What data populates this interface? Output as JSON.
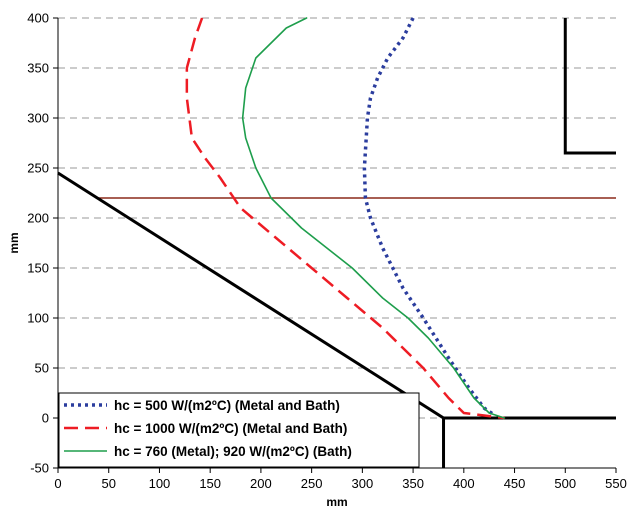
{
  "chart_data": {
    "type": "line",
    "title": "",
    "xlabel": "mm",
    "ylabel": "mm",
    "xlim": [
      0,
      550
    ],
    "ylim": [
      -50,
      400
    ],
    "xticks": [
      "0",
      "50",
      "100",
      "150",
      "200",
      "250",
      "300",
      "350",
      "400",
      "450",
      "500",
      "550"
    ],
    "yticks": [
      "-50",
      "0",
      "50",
      "100",
      "150",
      "200",
      "250",
      "300",
      "350",
      "400"
    ],
    "grid": "horizontal dashed",
    "legend_position": "bottom-left",
    "colors": {
      "s500": "#2b3d9e",
      "s1000": "#ee1c24",
      "s760": "#1e9e4c",
      "geometry": "#000000",
      "hline": "#8b2a1a",
      "grid": "#999999"
    },
    "series": [
      {
        "name": "hc = 500 W/(m2ºC) (Metal and Bath)",
        "style": "dotted",
        "x": [
          350,
          340,
          325,
          315,
          308,
          305,
          302,
          303,
          308,
          320,
          340,
          360,
          385,
          405,
          420,
          430
        ],
        "y": [
          400,
          380,
          360,
          340,
          320,
          300,
          250,
          220,
          200,
          170,
          130,
          100,
          60,
          30,
          10,
          3
        ]
      },
      {
        "name": "hc = 1000 W/(m2ºC) (Metal and Bath)",
        "style": "dashed",
        "x": [
          142,
          135,
          127,
          127,
          132,
          145,
          160,
          180,
          215,
          250,
          285,
          320,
          360,
          385,
          400,
          440
        ],
        "y": [
          400,
          380,
          350,
          320,
          280,
          260,
          240,
          210,
          180,
          150,
          120,
          90,
          50,
          20,
          5,
          0
        ]
      },
      {
        "name": "hc = 760 (Metal); 920 W/(m2ºC) (Bath)",
        "style": "solid",
        "x": [
          245,
          225,
          195,
          185,
          182,
          185,
          195,
          210,
          240,
          265,
          290,
          320,
          345,
          365,
          390,
          410,
          425,
          440
        ],
        "y": [
          400,
          390,
          360,
          330,
          300,
          280,
          250,
          220,
          190,
          170,
          150,
          120,
          100,
          80,
          50,
          20,
          5,
          0
        ]
      }
    ],
    "geometry": {
      "diagonal": [
        [
          0,
          245
        ],
        [
          380,
          0
        ]
      ],
      "floor": [
        [
          380,
          0
        ],
        [
          550,
          0
        ]
      ],
      "vertical": [
        [
          380,
          0
        ],
        [
          380,
          -50
        ]
      ],
      "box": [
        [
          500,
          400
        ],
        [
          500,
          265
        ],
        [
          550,
          265
        ]
      ],
      "hline_y": 220,
      "hline_x": [
        40,
        550
      ]
    }
  },
  "legend": {
    "items": [
      "hc = 500 W/(m2ºC) (Metal and Bath)",
      "hc = 1000 W/(m2ºC) (Metal and Bath)",
      "hc = 760 (Metal); 920 W/(m2ºC) (Bath)"
    ]
  }
}
